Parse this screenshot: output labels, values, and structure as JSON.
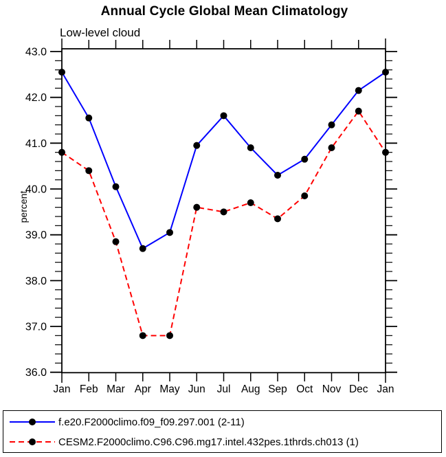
{
  "title": "Annual Cycle Global Mean Climatology",
  "subtitle": "Low-level cloud",
  "ylabel": "percent",
  "chart_data": {
    "type": "line",
    "categories": [
      "Jan",
      "Feb",
      "Mar",
      "Apr",
      "May",
      "Jun",
      "Jul",
      "Aug",
      "Sep",
      "Oct",
      "Nov",
      "Dec",
      "Jan"
    ],
    "series": [
      {
        "name": "f.e20.F2000climo.f09_f09.297.001 (2-11)",
        "color": "#0000ff",
        "line_style": "solid",
        "marker": "filled-circle",
        "marker_color": "#000000",
        "values": [
          42.55,
          41.55,
          40.05,
          38.7,
          39.05,
          40.95,
          41.6,
          40.9,
          40.3,
          40.65,
          41.4,
          42.15,
          42.55
        ]
      },
      {
        "name": "CESM2.F2000climo.C96.C96.mg17.intel.432pes.1thrds.ch013 (1)",
        "color": "#ff0000",
        "line_style": "dashed",
        "marker": "filled-circle",
        "marker_color": "#000000",
        "values": [
          40.8,
          40.4,
          38.85,
          36.8,
          36.8,
          39.6,
          39.5,
          39.7,
          39.35,
          39.85,
          40.9,
          41.7,
          40.8
        ]
      }
    ],
    "ylim": [
      36.0,
      43.0
    ],
    "ytick_step": 1.0,
    "yminor_step": 0.2,
    "ytick_labels": [
      "36.0",
      "37.0",
      "38.0",
      "39.0",
      "40.0",
      "41.0",
      "42.0",
      "43.0"
    ],
    "grid": false,
    "legend_position": "bottom",
    "axis_color": "#000000",
    "background_color": "#ffffff"
  }
}
